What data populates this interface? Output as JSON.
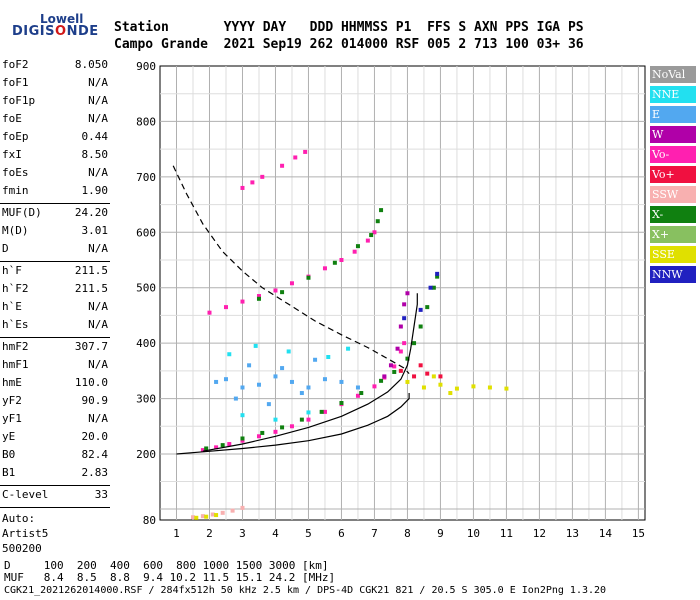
{
  "logo": {
    "top": "Lowell",
    "main_a": "DIGIS",
    "main_b": "O",
    "main_c": "NDE"
  },
  "header": {
    "line1": "Station       YYYY DAY   DDD HHMMSS P1  FFS S AXN PPS IGA PS",
    "line2": "Campo Grande  2021 Sep19 262 014000 RSF 005 2 713 100 03+ 36"
  },
  "params": {
    "group1": [
      {
        "name": "foF2",
        "value": "8.050"
      },
      {
        "name": "foF1",
        "value": "N/A"
      },
      {
        "name": "foF1p",
        "value": "N/A"
      },
      {
        "name": "foE",
        "value": "N/A"
      },
      {
        "name": "foEp",
        "value": "0.44"
      },
      {
        "name": "fxI",
        "value": "8.50"
      },
      {
        "name": "foEs",
        "value": "N/A"
      },
      {
        "name": "fmin",
        "value": "1.90"
      }
    ],
    "group2": [
      {
        "name": "MUF(D)",
        "value": "24.20"
      },
      {
        "name": "M(D)",
        "value": "3.01"
      },
      {
        "name": "D",
        "value": "N/A"
      }
    ],
    "group3": [
      {
        "name": "h`F",
        "value": "211.5"
      },
      {
        "name": "h`F2",
        "value": "211.5"
      },
      {
        "name": "h`E",
        "value": "N/A"
      },
      {
        "name": "h`Es",
        "value": "N/A"
      }
    ],
    "group4": [
      {
        "name": "hmF2",
        "value": "307.7"
      },
      {
        "name": "hmF1",
        "value": "N/A"
      },
      {
        "name": "hmE",
        "value": "110.0"
      },
      {
        "name": "yF2",
        "value": "90.9"
      },
      {
        "name": "yF1",
        "value": "N/A"
      },
      {
        "name": "yE",
        "value": "20.0"
      },
      {
        "name": "B0",
        "value": "82.4"
      },
      {
        "name": "B1",
        "value": "2.83"
      }
    ],
    "clevel": {
      "name": "C-level",
      "value": "33"
    },
    "auto": [
      "Auto:",
      "Artist5",
      "500200"
    ]
  },
  "legend": [
    {
      "label": "NoVal",
      "color": "#9a9a9a"
    },
    {
      "label": "NNE",
      "color": "#22e0f0"
    },
    {
      "label": "E",
      "color": "#52a8f0"
    },
    {
      "label": "W",
      "color": "#b000a8"
    },
    {
      "label": "Vo-",
      "color": "#ff20b0"
    },
    {
      "label": "Vo+",
      "color": "#f01040"
    },
    {
      "label": "SSW",
      "color": "#f8b0b0"
    },
    {
      "label": "X-",
      "color": "#108010"
    },
    {
      "label": "X+",
      "color": "#88c060"
    },
    {
      "label": "SSE",
      "color": "#e0e000"
    },
    {
      "label": "NNW",
      "color": "#2020c0"
    }
  ],
  "footer": {
    "line1": "D     100  200  400  600  800 1000 1500 3000 [km]",
    "line2": "MUF   8.4  8.5  8.8  9.4 10.2 11.5 15.1 24.2 [MHz]",
    "line3": "CGK21_2021262014000.RSF / 284fx512h 50 kHz 2.5 km / DPS-4D CGK21 821 / 20.5 S 305.0 E Ion2Png 1.3.20"
  },
  "chart_data": {
    "type": "scatter",
    "x_ticks": [
      1,
      2,
      3,
      4,
      5,
      6,
      7,
      8,
      9,
      10,
      11,
      12,
      13,
      14,
      15
    ],
    "y_ticks": [
      80,
      200,
      300,
      400,
      500,
      600,
      700,
      800,
      900
    ],
    "xlim": [
      0.5,
      15.2
    ],
    "ylim_lower_segment": [
      80,
      200
    ],
    "ylim_upper_segment": [
      200,
      900
    ],
    "grid": true,
    "series": [
      {
        "color": "#ff20b0",
        "points": [
          [
            1.8,
            207
          ],
          [
            2.2,
            212
          ],
          [
            2.6,
            218
          ],
          [
            3.0,
            224
          ],
          [
            3.5,
            232
          ],
          [
            4.0,
            240
          ],
          [
            4.5,
            250
          ],
          [
            5.0,
            262
          ],
          [
            5.5,
            276
          ],
          [
            6.0,
            290
          ],
          [
            6.5,
            305
          ],
          [
            7.0,
            322
          ],
          [
            7.3,
            338
          ],
          [
            7.6,
            358
          ],
          [
            7.8,
            385
          ],
          [
            7.9,
            400
          ]
        ]
      },
      {
        "color": "#108010",
        "points": [
          [
            1.9,
            210
          ],
          [
            2.4,
            216
          ],
          [
            3.0,
            228
          ],
          [
            3.6,
            238
          ],
          [
            4.2,
            248
          ],
          [
            4.8,
            262
          ],
          [
            5.4,
            276
          ],
          [
            6.0,
            292
          ],
          [
            6.6,
            310
          ],
          [
            7.2,
            332
          ],
          [
            7.6,
            348
          ],
          [
            8.0,
            372
          ],
          [
            8.2,
            400
          ],
          [
            8.4,
            430
          ],
          [
            8.6,
            465
          ],
          [
            8.8,
            500
          ],
          [
            8.9,
            520
          ]
        ]
      },
      {
        "color": "#b000a8",
        "points": [
          [
            7.3,
            340
          ],
          [
            7.5,
            360
          ],
          [
            7.7,
            390
          ],
          [
            7.8,
            430
          ],
          [
            7.9,
            470
          ],
          [
            8.0,
            490
          ]
        ]
      },
      {
        "color": "#52a8f0",
        "points": [
          [
            2.2,
            330
          ],
          [
            2.5,
            335
          ],
          [
            3.0,
            320
          ],
          [
            3.5,
            325
          ],
          [
            4.0,
            340
          ],
          [
            4.5,
            330
          ],
          [
            5.0,
            320
          ],
          [
            5.5,
            335
          ],
          [
            6.0,
            330
          ],
          [
            6.5,
            320
          ],
          [
            3.2,
            360
          ],
          [
            4.2,
            355
          ],
          [
            5.2,
            370
          ],
          [
            2.8,
            300
          ],
          [
            3.8,
            290
          ],
          [
            4.8,
            310
          ]
        ]
      },
      {
        "color": "#22e0f0",
        "points": [
          [
            2.6,
            380
          ],
          [
            3.4,
            395
          ],
          [
            4.4,
            385
          ],
          [
            5.6,
            375
          ],
          [
            6.2,
            390
          ],
          [
            3.0,
            270
          ],
          [
            4.0,
            262
          ],
          [
            5.0,
            275
          ]
        ]
      },
      {
        "color": "#ff20b0",
        "points": [
          [
            2.0,
            455
          ],
          [
            2.5,
            465
          ],
          [
            3.0,
            475
          ],
          [
            3.5,
            485
          ],
          [
            4.0,
            495
          ],
          [
            4.5,
            508
          ],
          [
            5.0,
            520
          ],
          [
            5.5,
            535
          ],
          [
            6.0,
            550
          ],
          [
            6.4,
            565
          ],
          [
            6.8,
            585
          ],
          [
            7.0,
            600
          ]
        ]
      },
      {
        "color": "#108010",
        "points": [
          [
            3.5,
            480
          ],
          [
            4.2,
            492
          ],
          [
            5.0,
            518
          ],
          [
            5.8,
            545
          ],
          [
            6.5,
            575
          ],
          [
            6.9,
            595
          ],
          [
            7.1,
            620
          ],
          [
            7.2,
            640
          ]
        ]
      },
      {
        "color": "#ff20b0",
        "points": [
          [
            3.0,
            680
          ],
          [
            3.3,
            690
          ],
          [
            3.6,
            700
          ],
          [
            4.2,
            720
          ],
          [
            4.6,
            735
          ],
          [
            4.9,
            745
          ]
        ]
      },
      {
        "color": "#e0e000",
        "points": [
          [
            8.0,
            330
          ],
          [
            8.5,
            320
          ],
          [
            9.0,
            325
          ],
          [
            9.5,
            318
          ],
          [
            10.0,
            322
          ],
          [
            10.5,
            320
          ],
          [
            11.0,
            318
          ],
          [
            8.8,
            340
          ],
          [
            9.3,
            310
          ]
        ]
      },
      {
        "color": "#f01040",
        "points": [
          [
            7.8,
            350
          ],
          [
            8.2,
            340
          ],
          [
            8.6,
            345
          ],
          [
            9.0,
            340
          ],
          [
            8.4,
            360
          ]
        ]
      },
      {
        "color": "#f8b0b0",
        "points": [
          [
            1.5,
            85
          ],
          [
            1.8,
            87
          ],
          [
            2.1,
            90
          ],
          [
            2.4,
            93
          ],
          [
            2.7,
            97
          ],
          [
            3.0,
            102
          ]
        ]
      },
      {
        "color": "#e0e000",
        "points": [
          [
            1.6,
            84
          ],
          [
            1.9,
            86
          ],
          [
            2.2,
            89
          ]
        ]
      },
      {
        "color": "#2020c0",
        "points": [
          [
            8.4,
            460
          ],
          [
            8.7,
            500
          ],
          [
            8.9,
            525
          ],
          [
            7.9,
            445
          ]
        ]
      }
    ],
    "lines": [
      {
        "style": "solid",
        "points": [
          [
            1.0,
            200
          ],
          [
            1.8,
            204
          ],
          [
            3.0,
            210
          ],
          [
            4.0,
            216
          ],
          [
            5.0,
            224
          ],
          [
            6.0,
            236
          ],
          [
            6.8,
            252
          ],
          [
            7.4,
            268
          ],
          [
            7.8,
            285
          ],
          [
            8.05,
            300
          ],
          [
            8.05,
            310
          ]
        ]
      },
      {
        "style": "solid",
        "points": [
          [
            1.8,
            205
          ],
          [
            3.0,
            218
          ],
          [
            4.0,
            232
          ],
          [
            5.0,
            248
          ],
          [
            6.0,
            268
          ],
          [
            6.8,
            290
          ],
          [
            7.4,
            312
          ],
          [
            7.8,
            335
          ],
          [
            8.0,
            360
          ],
          [
            8.1,
            390
          ],
          [
            8.2,
            430
          ],
          [
            8.3,
            470
          ],
          [
            8.3,
            490
          ]
        ]
      },
      {
        "style": "dashed",
        "points": [
          [
            0.9,
            720
          ],
          [
            1.3,
            670
          ],
          [
            1.8,
            615
          ],
          [
            2.4,
            565
          ],
          [
            3.0,
            530
          ],
          [
            3.6,
            500
          ],
          [
            4.4,
            470
          ],
          [
            5.2,
            440
          ],
          [
            6.0,
            415
          ],
          [
            6.8,
            392
          ],
          [
            7.4,
            372
          ],
          [
            7.9,
            355
          ],
          [
            8.05,
            345
          ]
        ]
      }
    ]
  }
}
